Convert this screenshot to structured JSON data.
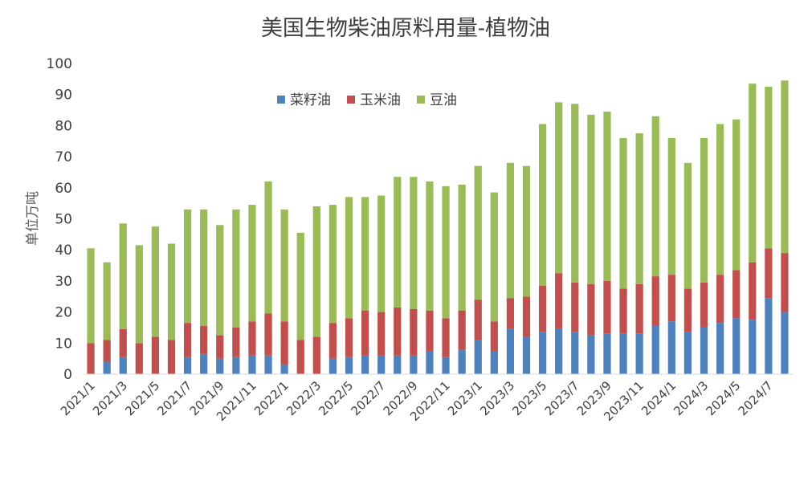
{
  "chart_data": {
    "type": "bar",
    "stacked": true,
    "title": "美国生物柴油原料用量-植物油",
    "ylabel": "单位万吨",
    "xlabel": "",
    "ylim": [
      0,
      100
    ],
    "yticks": [
      0,
      10,
      20,
      30,
      40,
      50,
      60,
      70,
      80,
      90,
      100
    ],
    "grid": false,
    "legend_position": "top-center",
    "categories": [
      "2021/1",
      "2021/2",
      "2021/3",
      "2021/4",
      "2021/5",
      "2021/6",
      "2021/7",
      "2021/8",
      "2021/9",
      "2021/10",
      "2021/11",
      "2021/12",
      "2022/1",
      "2022/2",
      "2022/3",
      "2022/4",
      "2022/5",
      "2022/6",
      "2022/7",
      "2022/8",
      "2022/9",
      "2022/10",
      "2022/11",
      "2022/12",
      "2023/1",
      "2023/2",
      "2023/3",
      "2023/4",
      "2023/5",
      "2023/6",
      "2023/7",
      "2023/8",
      "2023/9",
      "2023/10",
      "2023/11",
      "2023/12",
      "2024/1",
      "2024/2",
      "2024/3",
      "2024/4",
      "2024/5",
      "2024/6",
      "2024/7",
      "2024/8"
    ],
    "xtick_labels": [
      "2021/1",
      "2021/3",
      "2021/5",
      "2021/7",
      "2021/9",
      "2021/11",
      "2022/1",
      "2022/3",
      "2022/5",
      "2022/7",
      "2022/9",
      "2022/11",
      "2023/1",
      "2023/3",
      "2023/5",
      "2023/7",
      "2023/9",
      "2023/11",
      "2024/1",
      "2024/3",
      "2024/5",
      "2024/7"
    ],
    "series": [
      {
        "name": "菜籽油",
        "color": "#4f81bd",
        "values": [
          0,
          4,
          5.5,
          0,
          0,
          0,
          5.5,
          6.5,
          5,
          5.5,
          6,
          6,
          3,
          0,
          0,
          5,
          5.5,
          6,
          6,
          6,
          6,
          7.5,
          5.5,
          8,
          11,
          7.5,
          14.5,
          12,
          13.5,
          14.5,
          13.5,
          12.5,
          13,
          13,
          13,
          15.5,
          17,
          13.5,
          15,
          16.5,
          18,
          17.5,
          24.5,
          20
        ]
      },
      {
        "name": "玉米油",
        "color": "#c0504d",
        "values": [
          10,
          7,
          9,
          10,
          12,
          11,
          11,
          9,
          7.5,
          9.5,
          11,
          13.5,
          14,
          11,
          12,
          11.5,
          12.5,
          14.5,
          14,
          15.5,
          15,
          13,
          12.5,
          12.5,
          13,
          9.5,
          10,
          13,
          15,
          18,
          16,
          16.5,
          17,
          14.5,
          16,
          16,
          15,
          14,
          14.5,
          15.5,
          15.5,
          18.5,
          16,
          19
        ]
      },
      {
        "name": "豆油",
        "color": "#9bbb59",
        "values": [
          30.5,
          25,
          34,
          31.5,
          35.5,
          31,
          36.5,
          37.5,
          35.5,
          38,
          37.5,
          42.5,
          36,
          34.5,
          42,
          38,
          39,
          36.5,
          37.5,
          42,
          42.5,
          41.5,
          42.5,
          40.5,
          43,
          41.5,
          43.5,
          42,
          52,
          55,
          57.5,
          54.5,
          54.5,
          48.5,
          48.5,
          51.5,
          44,
          40.5,
          46.5,
          48.5,
          48.5,
          57.5,
          52,
          55.5
        ]
      }
    ]
  }
}
